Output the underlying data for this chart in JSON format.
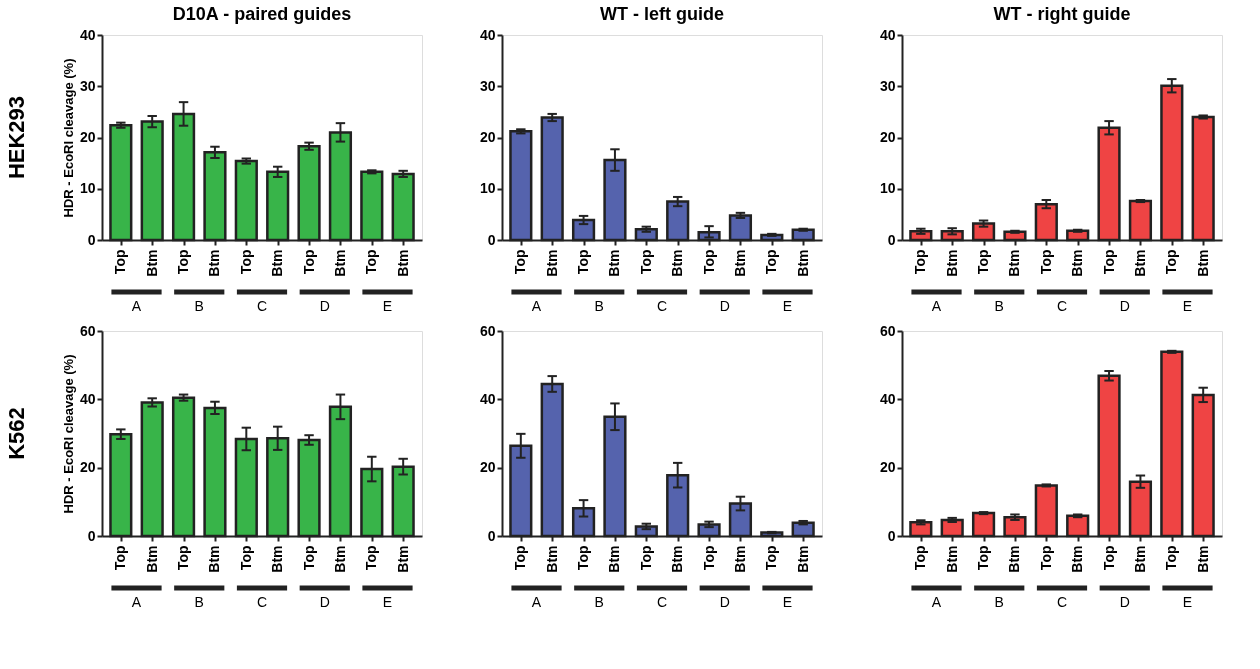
{
  "chart_data": [
    {
      "type": "bar",
      "title": "D10A - paired guides",
      "ylabel": "HDR - EcoRI cleavage (%)",
      "color": "#38b449",
      "grid": false,
      "categories": [
        "Top",
        "Btm",
        "Top",
        "Btm",
        "Top",
        "Btm",
        "Top",
        "Btm",
        "Top",
        "Btm"
      ],
      "values": [
        22.4,
        23.1,
        24.6,
        17.1,
        15.4,
        13.3,
        18.3,
        21.0,
        13.3,
        12.9
      ],
      "errors": [
        0.5,
        1.1,
        2.3,
        1.1,
        0.5,
        1.0,
        0.7,
        1.8,
        0.3,
        0.6
      ],
      "ylim": [
        0,
        40
      ],
      "yticks": [
        0,
        10,
        20,
        30,
        40
      ],
      "annotations": [
        "A",
        "B",
        "C",
        "D",
        "E",
        "HEK293"
      ]
    },
    {
      "type": "bar",
      "title": "WT - left guide",
      "color": "#5563ad",
      "grid": false,
      "categories": [
        "Top",
        "Btm",
        "Top",
        "Btm",
        "Top",
        "Btm",
        "Top",
        "Btm",
        "Top",
        "Btm"
      ],
      "values": [
        21.2,
        23.9,
        3.9,
        15.6,
        2.1,
        7.5,
        1.5,
        4.8,
        1.0,
        2.0
      ],
      "errors": [
        0.4,
        0.7,
        0.8,
        2.1,
        0.5,
        0.9,
        [
          0.5,
          2.7
        ],
        0.5,
        0.2,
        0.2
      ],
      "ylim": [
        0,
        40
      ],
      "yticks": [
        0,
        10,
        20,
        30,
        40
      ],
      "annotations": [
        "A",
        "B",
        "C",
        "D",
        "E"
      ]
    },
    {
      "type": "bar",
      "title": "WT - right guide",
      "color": "#ef4444",
      "grid": false,
      "categories": [
        "Top",
        "Btm",
        "Top",
        "Btm",
        "Top",
        "Btm",
        "Top",
        "Btm",
        "Top",
        "Btm"
      ],
      "values": [
        1.7,
        1.7,
        3.2,
        1.6,
        7.0,
        1.8,
        21.9,
        7.6,
        30.1,
        24.0
      ],
      "errors": [
        0.5,
        0.6,
        0.6,
        0.2,
        0.8,
        0.2,
        1.3,
        0.2,
        1.3,
        0.3
      ],
      "ylim": [
        0,
        40
      ],
      "yticks": [
        0,
        10,
        20,
        30,
        40
      ],
      "annotations": [
        "A",
        "B",
        "C",
        "D",
        "E"
      ]
    },
    {
      "type": "bar",
      "ylabel": "HDR - EcoRI cleavage (%)",
      "color": "#38b449",
      "grid": false,
      "categories": [
        "Top",
        "Btm",
        "Top",
        "Btm",
        "Top",
        "Btm",
        "Top",
        "Btm",
        "Top",
        "Btm"
      ],
      "values": [
        29.8,
        39.1,
        40.5,
        37.5,
        28.4,
        28.6,
        28.1,
        37.8,
        19.6,
        20.3
      ],
      "errors": [
        1.4,
        1.2,
        0.9,
        1.8,
        3.3,
        3.4,
        1.4,
        3.6,
        3.6,
        2.3
      ],
      "ylim": [
        0,
        60
      ],
      "yticks": [
        0,
        20,
        40,
        60
      ],
      "annotations": [
        "A",
        "B",
        "C",
        "D",
        "E",
        "K562"
      ]
    },
    {
      "type": "bar",
      "color": "#5563ad",
      "grid": false,
      "categories": [
        "Top",
        "Btm",
        "Top",
        "Btm",
        "Top",
        "Btm",
        "Top",
        "Btm",
        "Top",
        "Btm"
      ],
      "values": [
        26.4,
        44.5,
        8.1,
        34.9,
        2.8,
        17.8,
        3.4,
        9.5,
        1.0,
        3.9
      ],
      "errors": [
        3.5,
        2.3,
        2.4,
        3.9,
        0.8,
        3.6,
        0.8,
        2.0,
        0.2,
        0.5
      ],
      "ylim": [
        0,
        60
      ],
      "yticks": [
        0,
        20,
        40,
        60
      ],
      "annotations": [
        "A",
        "B",
        "C",
        "D",
        "E"
      ]
    },
    {
      "type": "bar",
      "color": "#ef4444",
      "grid": false,
      "categories": [
        "Top",
        "Btm",
        "Top",
        "Btm",
        "Top",
        "Btm",
        "Top",
        "Btm",
        "Top",
        "Btm"
      ],
      "values": [
        4.0,
        4.7,
        6.7,
        5.5,
        14.8,
        5.9,
        46.9,
        15.9,
        53.9,
        41.3
      ],
      "errors": [
        0.6,
        0.6,
        0.3,
        0.8,
        0.3,
        0.4,
        1.4,
        1.8,
        0.3,
        2.1
      ],
      "ylim": [
        0,
        60
      ],
      "yticks": [
        0,
        20,
        40,
        60
      ],
      "annotations": [
        "A",
        "B",
        "C",
        "D",
        "E"
      ]
    }
  ]
}
